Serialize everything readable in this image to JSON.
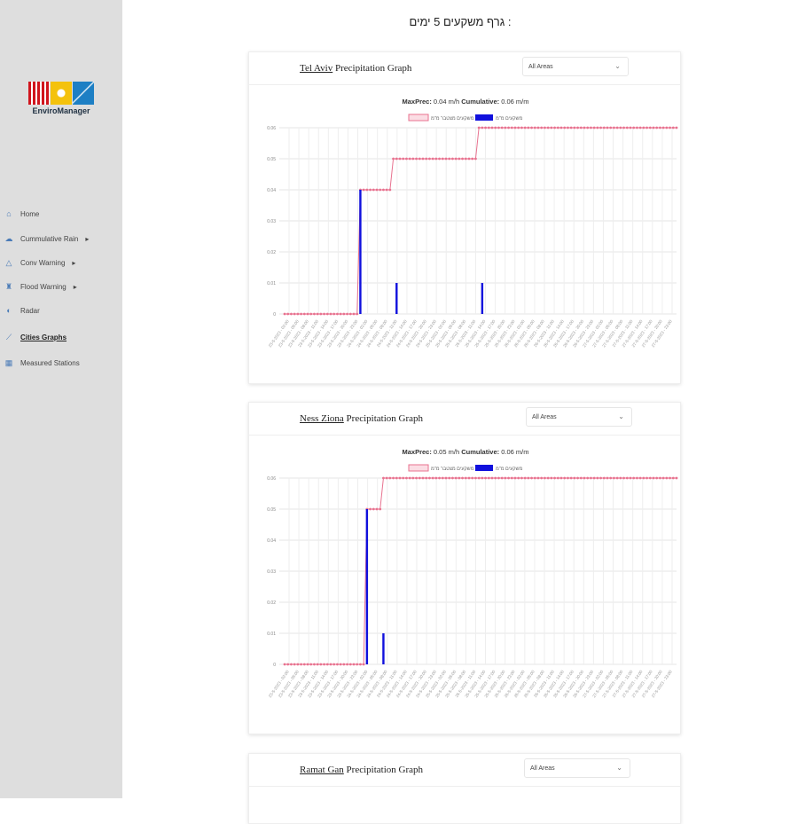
{
  "sidebar": {
    "brand": "EnviroManager",
    "items": [
      {
        "label": "Home",
        "icon": "home-icon"
      },
      {
        "label": "Cummulative Rain",
        "icon": "cloud-icon"
      },
      {
        "label": "Conv Warning",
        "icon": "warning-icon"
      },
      {
        "label": "Flood Warning",
        "icon": "flood-icon"
      },
      {
        "label": "Radar",
        "icon": "radar-icon"
      },
      {
        "label": "Cities Graphs",
        "icon": "chart-icon",
        "active": true
      },
      {
        "label": "Measured Stations",
        "icon": "station-icon"
      }
    ]
  },
  "page_title": "גרף משקעים 5 ימים :",
  "cards": [
    {
      "city": "Tel Aviv",
      "title_suffix": " Precipitation Graph",
      "select": "All Areas",
      "maxprec_label": "MaxPrec:",
      "maxprec": " 0.04 m/h",
      "cum_label": "Cumulative:",
      "cum": " 0.06 m/m"
    },
    {
      "city": "Ness Ziona",
      "title_suffix": " Precipitation Graph",
      "select": "All Areas",
      "maxprec_label": "MaxPrec:",
      "maxprec": " 0.05 m/h",
      "cum_label": "Cumulative:",
      "cum": " 0.06 m/m"
    },
    {
      "city": "Ramat Gan",
      "title_suffix": " Precipitation Graph",
      "select": "All Areas"
    }
  ],
  "chart_data": [
    {
      "type": "bar+line",
      "title": "Tel Aviv Precipitation Graph",
      "ylim": [
        0,
        0.06
      ],
      "yticks": [
        "0",
        "0.01",
        "0.02",
        "0.03",
        "0.04",
        "0.05",
        "0.06"
      ],
      "legend": [
        "משקעים מצטבר מ\"מ",
        "משקעים מ\"מ"
      ],
      "n_points": 120,
      "cumulative_steps": [
        {
          "from_index": 23,
          "value": 0.04
        },
        {
          "from_index": 33,
          "value": 0.05
        },
        {
          "from_index": 59,
          "value": 0.06
        }
      ],
      "bars": [
        {
          "index": 23,
          "value": 0.04
        },
        {
          "index": 34,
          "value": 0.01
        },
        {
          "index": 60,
          "value": 0.01
        }
      ]
    },
    {
      "type": "bar+line",
      "title": "Ness Ziona Precipitation Graph",
      "ylim": [
        0,
        0.06
      ],
      "yticks": [
        "0",
        "0.01",
        "0.02",
        "0.03",
        "0.04",
        "0.05",
        "0.06"
      ],
      "legend": [
        "משקעים מצטבר מ\"מ",
        "משקעים מ\"מ"
      ],
      "n_points": 120,
      "cumulative_steps": [
        {
          "from_index": 25,
          "value": 0.05
        },
        {
          "from_index": 30,
          "value": 0.06
        }
      ],
      "bars": [
        {
          "index": 25,
          "value": 0.05
        },
        {
          "index": 30,
          "value": 0.01
        }
      ]
    }
  ],
  "xlabels": [
    "23-5-2023 - 02:00",
    "23-5-2023 - 05:00",
    "23-5-2023 - 08:00",
    "23-5-2023 - 11:00",
    "23-5-2023 - 14:00",
    "23-5-2023 - 17:00",
    "23-5-2023 - 20:00",
    "23-5-2023 - 23:00",
    "24-5-2023 - 02:00",
    "24-5-2023 - 05:00",
    "24-5-2023 - 08:00",
    "24-5-2023 - 11:00",
    "24-5-2023 - 14:00",
    "24-5-2023 - 17:00",
    "24-5-2023 - 20:00",
    "24-5-2023 - 23:00",
    "25-5-2023 - 02:00",
    "25-5-2023 - 05:00",
    "25-5-2023 - 08:00",
    "25-5-2023 - 11:00",
    "25-5-2023 - 14:00",
    "25-5-2023 - 17:00",
    "25-5-2023 - 20:00",
    "25-5-2023 - 23:00",
    "26-5-2023 - 02:00",
    "26-5-2023 - 05:00",
    "26-5-2023 - 08:00",
    "26-5-2023 - 11:00",
    "26-5-2023 - 14:00",
    "26-5-2023 - 17:00",
    "26-5-2023 - 20:00",
    "26-5-2023 - 23:00",
    "27-5-2023 - 02:00",
    "27-5-2023 - 05:00",
    "27-5-2023 - 08:00",
    "27-5-2023 - 11:00",
    "27-5-2023 - 14:00",
    "27-5-2023 - 17:00",
    "27-5-2023 - 20:00",
    "27-5-2023 - 23:00"
  ],
  "colors": {
    "cumulative": "#e8728f",
    "bars": "#1010dd",
    "sidebar": "#dedede"
  }
}
